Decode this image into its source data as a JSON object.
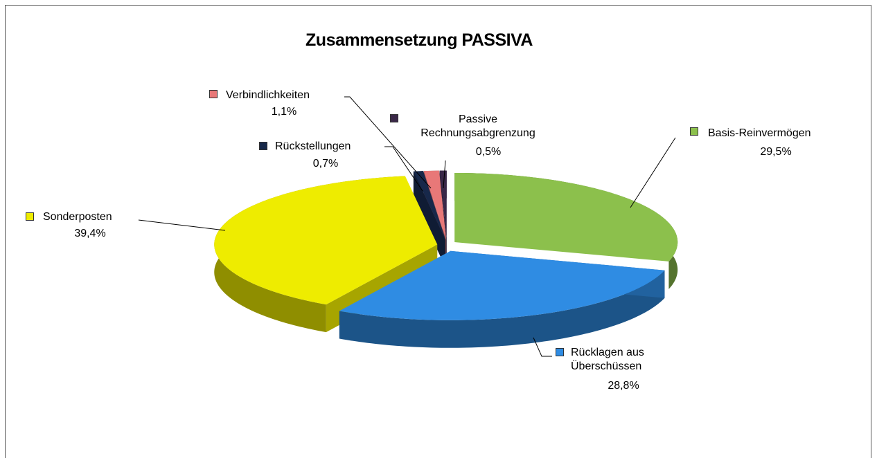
{
  "chart_data": {
    "type": "pie",
    "title": "Zusammensetzung PASSIVA",
    "categories": [
      "Basis-Reinvermögen",
      "Rücklagen aus Überschüssen",
      "Sonderposten",
      "Rückstellungen",
      "Verbindlichkeiten",
      "Passive Rechnungsabgrenzung"
    ],
    "values": [
      29.5,
      28.8,
      39.4,
      0.7,
      1.1,
      0.5
    ],
    "value_labels": [
      "29,5%",
      "28,8%",
      "39,4%",
      "0,7%",
      "1,1%",
      "0,5%"
    ],
    "colors": [
      "#8cc04c",
      "#2f8ce3",
      "#eeec00",
      "#17284a",
      "#e87878",
      "#3a2848"
    ]
  }
}
